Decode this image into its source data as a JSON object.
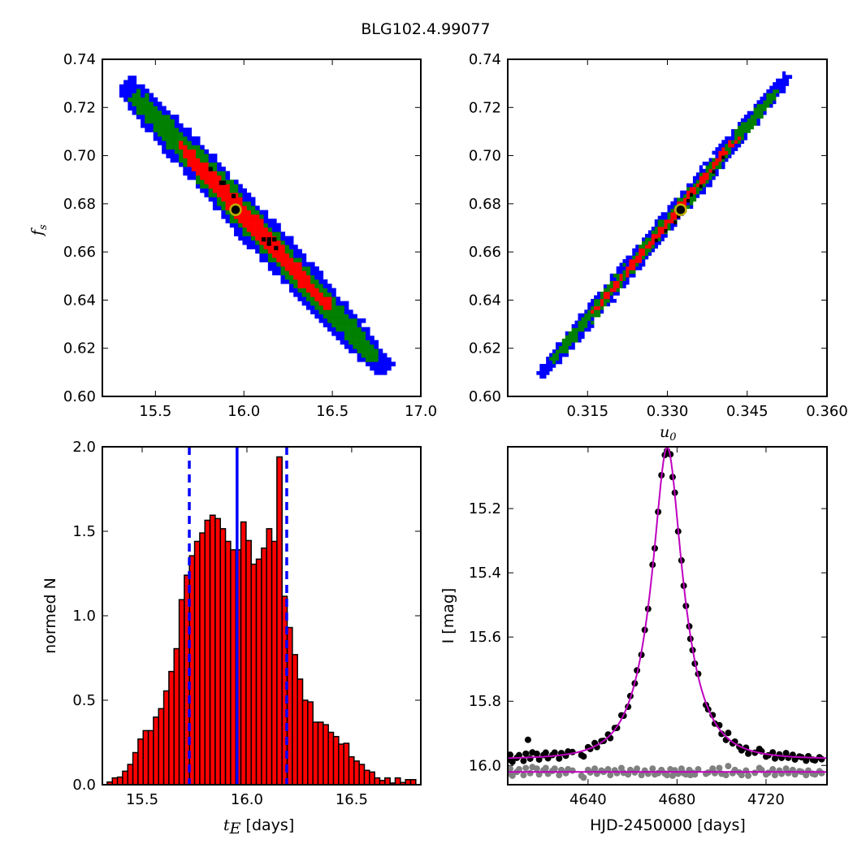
{
  "title": "BLG102.4.99077",
  "chart_data": [
    {
      "type": "heatmap",
      "panel": "tE-vs-fs",
      "xlabel_main": "t",
      "xlabel_sub": "E",
      "ylabel_main": "f",
      "ylabel_sub": "s",
      "xlim": [
        15.2,
        17.0
      ],
      "ylim": [
        0.6,
        0.74
      ],
      "xticks": [
        15.5,
        16.0,
        16.5,
        17.0
      ],
      "xtick_labels": [
        "15.5",
        "16.0",
        "16.5",
        "17.0"
      ],
      "yticks": [
        0.6,
        0.62,
        0.64,
        0.66,
        0.68,
        0.7,
        0.72,
        0.74
      ],
      "ytick_labels": [
        "0.60",
        "0.62",
        "0.64",
        "0.66",
        "0.68",
        "0.70",
        "0.72",
        "0.74"
      ],
      "cell": [
        0.024,
        0.0018
      ],
      "band_start": [
        15.35,
        0.728
      ],
      "band_end": [
        16.78,
        0.613
      ],
      "levels": [
        {
          "name": "3-sigma",
          "color": "#0000ff",
          "half_width_y": 0.011,
          "s_range": [
            -0.02,
            1.02
          ]
        },
        {
          "name": "2-sigma",
          "color": "#008000",
          "half_width_y": 0.0072,
          "s_range": [
            0.02,
            0.98
          ]
        },
        {
          "name": "1-sigma",
          "color": "#ff0000",
          "half_width_y": 0.0045,
          "s_range": [
            0.2,
            0.8
          ]
        }
      ],
      "peak_cells": [
        [
          15.8,
          0.6935
        ],
        [
          15.86,
          0.6878
        ],
        [
          15.875,
          0.6878
        ],
        [
          15.93,
          0.6823
        ],
        [
          16.1,
          0.6643
        ],
        [
          16.13,
          0.6643
        ],
        [
          16.16,
          0.6643
        ],
        [
          16.13,
          0.6625
        ],
        [
          16.17,
          0.6607
        ]
      ],
      "best_fit": {
        "x": 15.953,
        "y": 0.6775
      }
    },
    {
      "type": "heatmap",
      "panel": "u0-vs-fs",
      "xlabel_main": "u",
      "xlabel_sub": "0",
      "xlim": [
        0.3,
        0.36
      ],
      "ylim": [
        0.6,
        0.74
      ],
      "xticks": [
        0.315,
        0.33,
        0.345,
        0.36
      ],
      "xtick_labels": [
        "0.315",
        "0.330",
        "0.345",
        "0.360"
      ],
      "yticks": [
        0.6,
        0.62,
        0.64,
        0.66,
        0.68,
        0.7,
        0.72,
        0.74
      ],
      "ytick_labels": [
        "0.60",
        "0.62",
        "0.64",
        "0.66",
        "0.68",
        "0.70",
        "0.72",
        "0.74"
      ],
      "cell": [
        0.0006,
        0.0015
      ],
      "band_start": [
        0.307,
        0.611
      ],
      "band_end": [
        0.352,
        0.731
      ],
      "levels": [
        {
          "name": "3-sigma",
          "color": "#0000ff",
          "half_width_y": 0.0055,
          "s_range": [
            -0.02,
            1.02
          ]
        },
        {
          "name": "2-sigma",
          "color": "#008000",
          "half_width_y": 0.0036,
          "s_range": [
            0.03,
            0.97
          ]
        },
        {
          "name": "1-sigma",
          "color": "#ff0000",
          "half_width_y": 0.0018,
          "s_range": [
            0.2,
            0.82
          ]
        }
      ],
      "peak_cells": [
        [
          0.3276,
          0.664
        ],
        [
          0.3294,
          0.668
        ],
        [
          0.3312,
          0.6715
        ],
        [
          0.3318,
          0.674
        ],
        [
          0.3336,
          0.6805
        ],
        [
          0.3342,
          0.683
        ],
        [
          0.336,
          0.6865
        ],
        [
          0.3384,
          0.6925
        ],
        [
          0.3402,
          0.6985
        ]
      ],
      "best_fit": {
        "x": 0.3325,
        "y": 0.6775
      }
    },
    {
      "type": "bar",
      "panel": "tE-histogram",
      "xlabel_main": "t",
      "xlabel_sub": "E",
      "xlabel_rest": " [days]",
      "ylabel": "normed N",
      "xlim": [
        15.31,
        16.83
      ],
      "ylim": [
        0,
        2.0
      ],
      "xticks": [
        15.5,
        16.0,
        16.5
      ],
      "xtick_labels": [
        "15.5",
        "16.0",
        "16.5"
      ],
      "yticks": [
        0,
        0.5,
        1.0,
        1.5,
        2.0
      ],
      "ytick_labels": [
        "0.0",
        "0.5",
        "1.0",
        "1.5",
        "2.0"
      ],
      "bin_start": 15.333,
      "bin_width": 0.02455,
      "values": [
        0.016,
        0.04,
        0.045,
        0.08,
        0.12,
        0.19,
        0.27,
        0.32,
        0.32,
        0.4,
        0.45,
        0.555,
        0.67,
        0.805,
        1.095,
        1.24,
        1.355,
        1.44,
        1.49,
        1.565,
        1.595,
        1.575,
        1.515,
        1.44,
        1.39,
        1.39,
        1.555,
        1.445,
        1.305,
        1.335,
        1.4,
        1.515,
        1.44,
        1.94,
        1.115,
        0.93,
        0.77,
        0.625,
        0.5,
        0.49,
        0.37,
        0.37,
        0.355,
        0.31,
        0.285,
        0.24,
        0.245,
        0.165,
        0.14,
        0.12,
        0.085,
        0.075,
        0.04,
        0.025,
        0.04,
        0.01,
        0.04,
        0.013,
        0.03,
        0.03
      ],
      "bar_color": "#ff0000",
      "median": 15.953,
      "lower": 15.725,
      "upper": 16.19,
      "line_color": "#0000ff"
    },
    {
      "type": "scatter",
      "panel": "light-curve",
      "xlabel": "HJD-2450000 [days]",
      "ylabel": "I [mag]",
      "xlim": [
        4603.9,
        4747.4
      ],
      "ylim": [
        16.06,
        15.0075
      ],
      "y_inverted": true,
      "xticks": [
        4640,
        4680,
        4720
      ],
      "xtick_labels": [
        "4640",
        "4680",
        "4720"
      ],
      "yticks": [
        15.2,
        15.4,
        15.6,
        15.8,
        16.0
      ],
      "ytick_labels": [
        "15.2",
        "15.4",
        "15.6",
        "15.8",
        "16.0"
      ],
      "model": {
        "t0": 4675.6,
        "tE": 15.953,
        "u0": 0.3325,
        "fs": 0.6775,
        "baseline": 15.98,
        "color": "#bf00bf"
      },
      "residual_offset": 16.02,
      "data_color": "#000000",
      "residual_color": "#808080",
      "times": [
        4604,
        4605,
        4606,
        4608,
        4609,
        4611,
        4612,
        4613,
        4614,
        4615,
        4617,
        4618,
        4620,
        4621,
        4622,
        4624,
        4625,
        4627,
        4628,
        4630,
        4631,
        4633,
        4637,
        4638,
        4640,
        4641,
        4643,
        4644,
        4646,
        4647,
        4649,
        4650,
        4652,
        4653,
        4655,
        4656,
        4658,
        4659,
        4661,
        4662,
        4664,
        4665.5,
        4667,
        4669,
        4670,
        4671.5,
        4673,
        4674.5,
        4675.5,
        4677,
        4678,
        4679,
        4680.5,
        4682,
        4683,
        4684,
        4685.5,
        4686,
        4687,
        4688,
        4689.5,
        4693,
        4694,
        4696,
        4697,
        4699,
        4700,
        4702,
        4703,
        4705,
        4706,
        4708,
        4709,
        4711,
        4712,
        4715,
        4717,
        4718,
        4720,
        4721,
        4723,
        4724,
        4726,
        4727,
        4729,
        4730,
        4732,
        4733,
        4735,
        4736,
        4738,
        4739,
        4741,
        4742,
        4744,
        4745
      ],
      "residuals": [
        0.005,
        -0.01,
        0.012,
        0.0,
        -0.008,
        0.01,
        -0.012,
        -0.055,
        0.004,
        -0.015,
        -0.01,
        0.008,
        -0.005,
        -0.012,
        0.006,
        -0.003,
        -0.01,
        0.01,
        -0.006,
        0.004,
        -0.008,
        -0.004,
        0.012,
        0.018,
        -0.006,
        0.002,
        -0.01,
        0.006,
        -0.004,
        0.0,
        -0.008,
        0.01,
        -0.005,
        0.004,
        -0.012,
        0.003,
        0.008,
        -0.006,
        0.002,
        -0.01,
        0.01,
        -0.004,
        0.006,
        -0.01,
        0.008,
        0.004,
        -0.006,
        0.005,
        0.01,
        -0.008,
        0.012,
        -0.005,
        0.006,
        -0.01,
        0.004,
        0.008,
        -0.006,
        0.01,
        0.003,
        0.008,
        -0.008,
        0.006,
        0.002,
        -0.01,
        0.004,
        -0.012,
        0.006,
        0.01,
        -0.018,
        0.004,
        -0.006,
        0.002,
        0.01,
        -0.004,
        0.012,
        0.003,
        -0.012,
        -0.006,
        0.008,
        0.003,
        -0.008,
        0.01,
        -0.004,
        0.006,
        -0.01,
        0.004,
        -0.006,
        0.008,
        -0.002,
        0.0,
        0.01,
        -0.004,
        0.006,
        0.008,
        -0.002,
        0.004
      ]
    }
  ]
}
